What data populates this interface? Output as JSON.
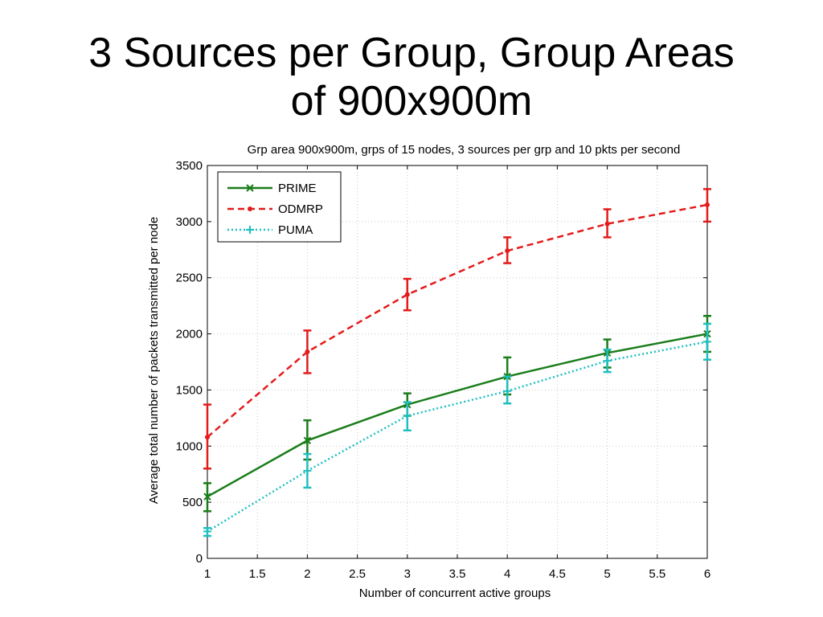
{
  "slide": {
    "title_line1": "3 Sources per Group, Group Areas",
    "title_line2": "of 900x900m"
  },
  "chart_data": {
    "type": "line",
    "title": "Grp area 900x900m, grps of 15 nodes, 3 sources per grp and 10 pkts per second",
    "xlabel": "Number of concurrent active groups",
    "ylabel": "Average total number of packets transmitted per node",
    "xlim": [
      1,
      6
    ],
    "ylim": [
      0,
      3500
    ],
    "xticks": [
      "1",
      "1.5",
      "2",
      "2.5",
      "3",
      "3.5",
      "4",
      "4.5",
      "5",
      "5.5",
      "6"
    ],
    "yticks": [
      "0",
      "500",
      "1000",
      "1500",
      "2000",
      "2500",
      "3000",
      "3500"
    ],
    "grid": true,
    "legend_position": "top-left",
    "x": [
      1,
      2,
      3,
      4,
      5,
      6
    ],
    "series": [
      {
        "name": "PRIME",
        "color": "#1a7d1a",
        "line_style": "solid",
        "marker": "x",
        "values": [
          550,
          1050,
          1370,
          1620,
          1830,
          2000
        ],
        "error_low": [
          420,
          880,
          1270,
          1460,
          1700,
          1840
        ],
        "error_high": [
          670,
          1230,
          1470,
          1790,
          1950,
          2160
        ]
      },
      {
        "name": "ODMRP",
        "color": "#e31b1b",
        "line_style": "dashed",
        "marker": "dot",
        "values": [
          1080,
          1840,
          2350,
          2740,
          2980,
          3150
        ],
        "error_low": [
          800,
          1650,
          2210,
          2630,
          2860,
          3000
        ],
        "error_high": [
          1370,
          2030,
          2490,
          2860,
          3110,
          3290
        ]
      },
      {
        "name": "PUMA",
        "color": "#1fbfbf",
        "line_style": "dotted",
        "marker": "plus",
        "values": [
          240,
          780,
          1270,
          1490,
          1760,
          1930
        ],
        "error_low": [
          200,
          630,
          1140,
          1380,
          1660,
          1770
        ],
        "error_high": [
          270,
          930,
          1390,
          1620,
          1860,
          2090
        ]
      }
    ]
  }
}
